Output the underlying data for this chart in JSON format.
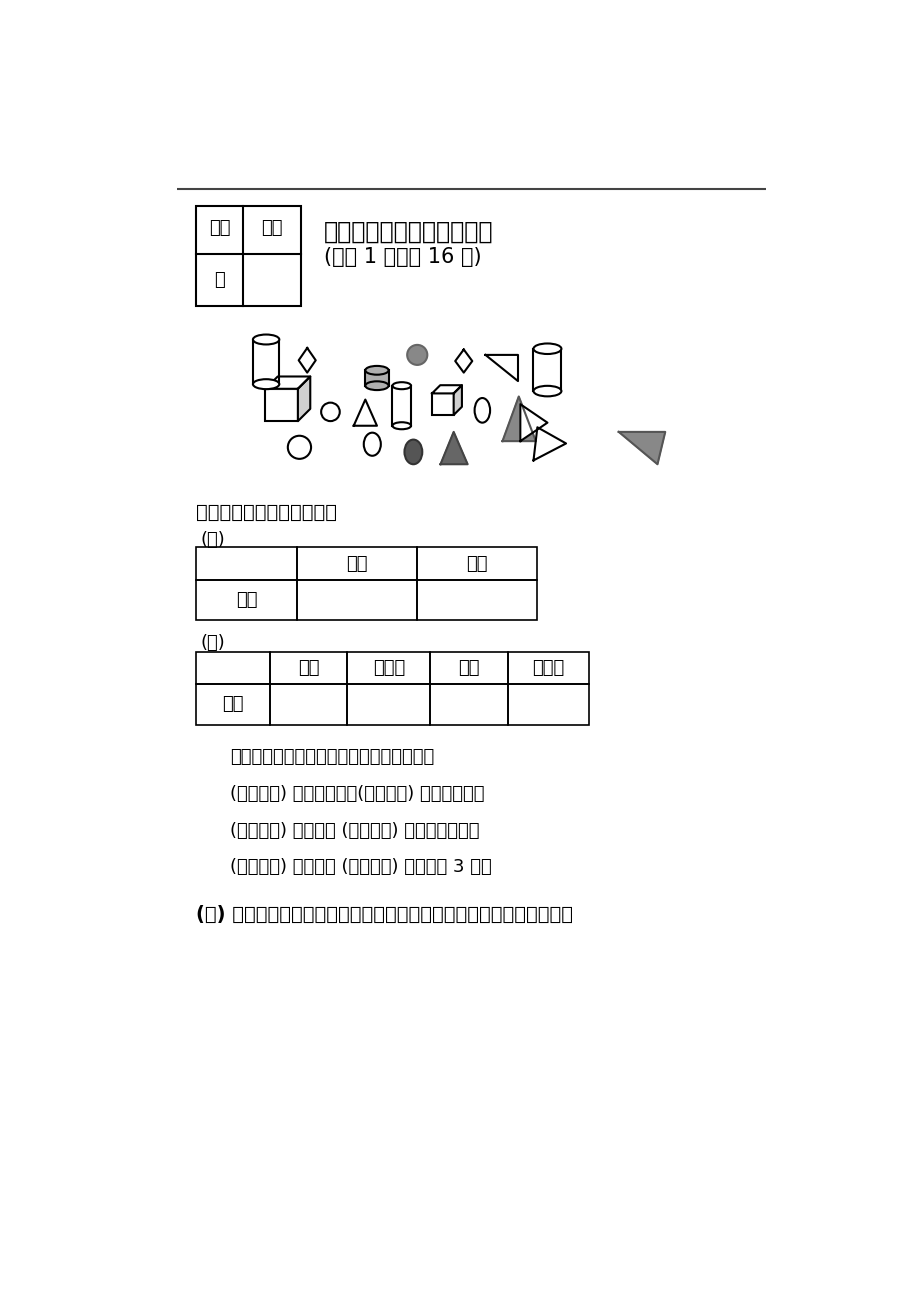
{
  "title_bold": "五、按要求完成下面个体题",
  "title_normal": "(每空 1 分，共 16 分)",
  "grader_label1": "评卷",
  "grader_label2": "人",
  "score_label": "得分",
  "classify_label": "把分类的结果整理在表中。",
  "table1_header": [
    "灰色",
    "白色"
  ],
  "table1_row": "个数",
  "table2_header": [
    "囟柱",
    "正方体",
    "圆形",
    "三角形"
  ],
  "table2_row": "个数",
  "label_1": "(１)",
  "label_2": "(２)",
  "analysis_text": "根据上面表格分类的结果，回答以下问题。",
  "q1": "(　　　　) 的个数最多，(　　　　) 的个数最少。",
  "q2": "(　　　　) 的个数和 (　　　　) 的个数一样多。",
  "q3": "(　　　　) 的个数比 (　　　　) 的个数多 3 个。",
  "q4_bold": "(３) 如果把这些图形分成两组，可以怎样分？把分组的结果表示出来。",
  "bg_color": "#ffffff"
}
